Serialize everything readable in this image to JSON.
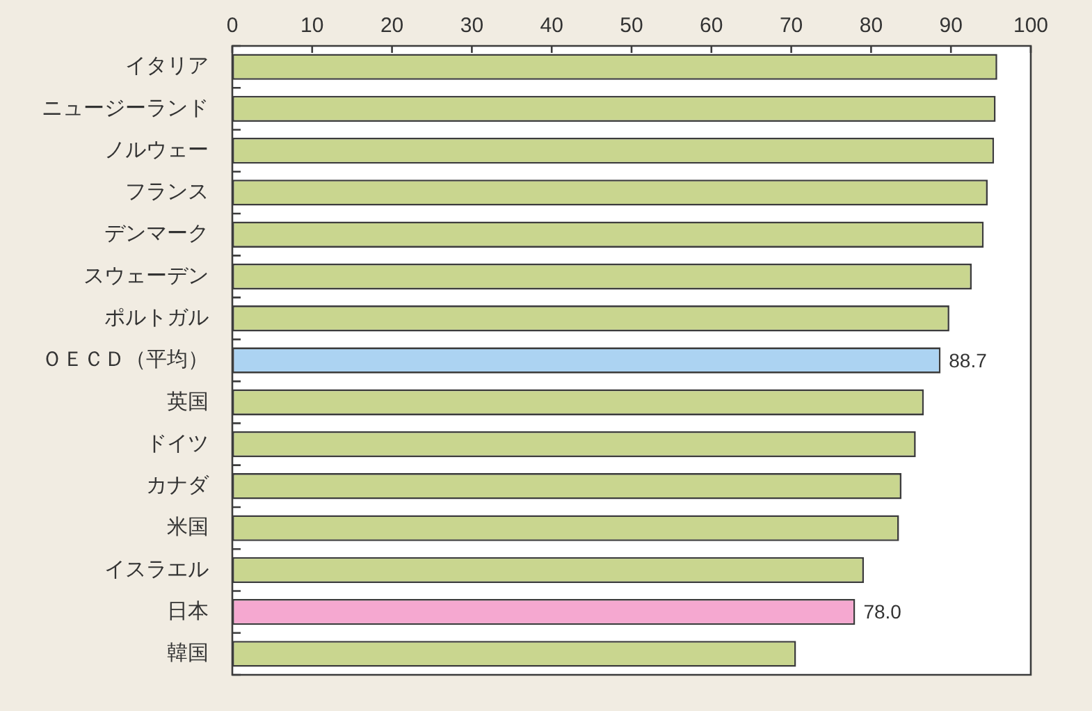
{
  "chart_data": {
    "type": "bar",
    "orientation": "horizontal",
    "categories": [
      "イタリア",
      "ニュージーランド",
      "ノルウェー",
      "フランス",
      "デンマーク",
      "スウェーデン",
      "ポルトガル",
      "ＯＥＣＤ（平均）",
      "英国",
      "ドイツ",
      "カナダ",
      "米国",
      "イスラエル",
      "日本",
      "韓国"
    ],
    "values": [
      95.8,
      95.6,
      95.4,
      94.6,
      94.1,
      92.6,
      89.8,
      88.7,
      86.6,
      85.6,
      83.8,
      83.5,
      79.1,
      78.0,
      70.6
    ],
    "colors": [
      "#c9d68f",
      "#c9d68f",
      "#c9d68f",
      "#c9d68f",
      "#c9d68f",
      "#c9d68f",
      "#c9d68f",
      "#acd3f2",
      "#c9d68f",
      "#c9d68f",
      "#c9d68f",
      "#c9d68f",
      "#c9d68f",
      "#f5a8d0",
      "#c9d68f"
    ],
    "value_labels": [
      null,
      null,
      null,
      null,
      null,
      null,
      null,
      "88.7",
      null,
      null,
      null,
      null,
      null,
      "78.0",
      null
    ],
    "xlim": [
      0,
      100
    ],
    "xticks": [
      0,
      10,
      20,
      30,
      40,
      50,
      60,
      70,
      80,
      90,
      100
    ],
    "grid": false
  }
}
